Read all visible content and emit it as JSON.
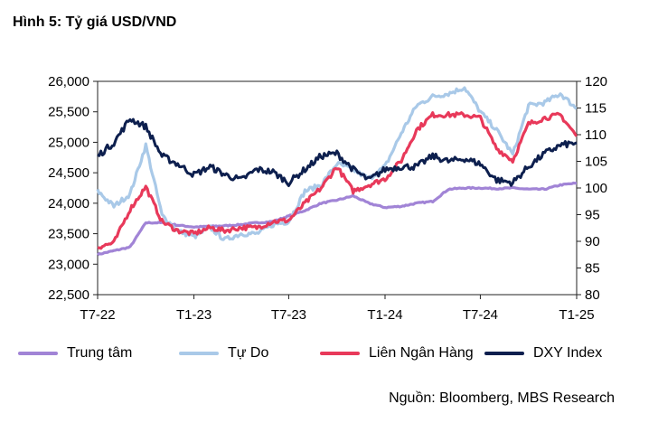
{
  "title": "Hình 5: Tỷ giá USD/VND",
  "source": "Nguồn: Bloomberg, MBS Research",
  "chart_data": {
    "type": "line",
    "x_ticks": [
      "T7-22",
      "T1-23",
      "T7-23",
      "T1-24",
      "T7-24",
      "T1-25"
    ],
    "x_range": [
      "T7-22",
      "T1-25"
    ],
    "y_left": {
      "range": [
        22500,
        26000
      ],
      "ticks": [
        "22,500",
        "23,000",
        "23,500",
        "24,000",
        "24,500",
        "25,000",
        "25,500",
        "26,000"
      ]
    },
    "y_right": {
      "range": [
        80,
        120
      ],
      "ticks": [
        "80",
        "85",
        "90",
        "95",
        "100",
        "105",
        "110",
        "115",
        "120"
      ]
    },
    "grid": false,
    "legend_position": "bottom",
    "series": [
      {
        "name": "Trung tâm",
        "axis": "left",
        "color": "#a184d6",
        "x": [
          "2022-07-01",
          "2022-08-01",
          "2022-09-01",
          "2022-10-01",
          "2022-11-01",
          "2022-12-01",
          "2023-01-01",
          "2023-02-01",
          "2023-03-01",
          "2023-04-01",
          "2023-05-01",
          "2023-06-01",
          "2023-07-01",
          "2023-08-01",
          "2023-09-01",
          "2023-10-01",
          "2023-11-01",
          "2023-12-01",
          "2024-01-01",
          "2024-02-01",
          "2024-03-01",
          "2024-04-01",
          "2024-05-01",
          "2024-06-01",
          "2024-07-01",
          "2024-08-01",
          "2024-09-01",
          "2024-10-01",
          "2024-11-01",
          "2024-12-01",
          "2025-01-01"
        ],
        "y": [
          23160,
          23220,
          23280,
          23680,
          23680,
          23640,
          23610,
          23620,
          23630,
          23650,
          23680,
          23700,
          23790,
          23880,
          24000,
          24050,
          24120,
          24000,
          23930,
          23950,
          24000,
          24030,
          24230,
          24250,
          24250,
          24240,
          24250,
          24230,
          24230,
          24300,
          24330
        ]
      },
      {
        "name": "Tự Do",
        "axis": "left",
        "color": "#a9c9e8",
        "x": [
          "2022-07-01",
          "2022-08-01",
          "2022-09-01",
          "2022-10-01",
          "2022-11-01",
          "2022-12-01",
          "2023-01-01",
          "2023-02-01",
          "2023-03-01",
          "2023-04-01",
          "2023-05-01",
          "2023-06-01",
          "2023-07-01",
          "2023-08-01",
          "2023-09-01",
          "2023-10-01",
          "2023-11-01",
          "2023-12-01",
          "2024-01-01",
          "2024-02-01",
          "2024-03-01",
          "2024-04-01",
          "2024-05-01",
          "2024-06-01",
          "2024-07-01",
          "2024-08-01",
          "2024-09-01",
          "2024-10-01",
          "2024-11-01",
          "2024-12-01",
          "2025-01-01"
        ],
        "y": [
          24200,
          23950,
          24150,
          24950,
          23800,
          23550,
          23450,
          23600,
          23400,
          23500,
          23500,
          23650,
          23700,
          24200,
          24300,
          24650,
          24550,
          24400,
          24600,
          25150,
          25600,
          25750,
          25800,
          25900,
          25500,
          25200,
          24800,
          25600,
          25650,
          25800,
          25550
        ]
      },
      {
        "name": "Liên Ngân Hàng",
        "axis": "left",
        "color": "#e8395a",
        "x": [
          "2022-07-01",
          "2022-08-01",
          "2022-09-01",
          "2022-10-01",
          "2022-11-01",
          "2022-12-01",
          "2023-01-01",
          "2023-02-01",
          "2023-03-01",
          "2023-04-01",
          "2023-05-01",
          "2023-06-01",
          "2023-07-01",
          "2023-08-01",
          "2023-09-01",
          "2023-10-01",
          "2023-11-01",
          "2023-12-01",
          "2024-01-01",
          "2024-02-01",
          "2024-03-01",
          "2024-04-01",
          "2024-05-01",
          "2024-06-01",
          "2024-07-01",
          "2024-08-01",
          "2024-09-01",
          "2024-10-01",
          "2024-11-01",
          "2024-12-01",
          "2025-01-01"
        ],
        "y": [
          23280,
          23350,
          23900,
          24270,
          23700,
          23550,
          23500,
          23600,
          23550,
          23600,
          23600,
          23700,
          23720,
          24000,
          24250,
          24600,
          24200,
          24300,
          24400,
          24700,
          25200,
          25450,
          25450,
          25450,
          25400,
          24900,
          24700,
          25300,
          25400,
          25450,
          25100
        ]
      },
      {
        "name": "DXY Index",
        "axis": "right",
        "color": "#0d1f4e",
        "x": [
          "2022-07-01",
          "2022-08-01",
          "2022-09-01",
          "2022-10-01",
          "2022-11-01",
          "2022-12-01",
          "2023-01-01",
          "2023-02-01",
          "2023-03-01",
          "2023-04-01",
          "2023-05-01",
          "2023-06-01",
          "2023-07-01",
          "2023-08-01",
          "2023-09-01",
          "2023-10-01",
          "2023-11-01",
          "2023-12-01",
          "2024-01-01",
          "2024-02-01",
          "2024-03-01",
          "2024-04-01",
          "2024-05-01",
          "2024-06-01",
          "2024-07-01",
          "2024-08-01",
          "2024-09-01",
          "2024-10-01",
          "2024-11-01",
          "2024-12-01",
          "2025-01-01"
        ],
        "y": [
          106.0,
          108.5,
          113.0,
          111.5,
          106.0,
          104.5,
          102.5,
          104.0,
          102.5,
          101.5,
          103.5,
          103.0,
          101.0,
          103.5,
          106.0,
          106.5,
          103.5,
          101.5,
          103.5,
          104.0,
          104.0,
          106.0,
          105.0,
          105.5,
          104.5,
          101.5,
          101.0,
          104.0,
          106.5,
          108.0,
          108.5
        ]
      }
    ]
  }
}
